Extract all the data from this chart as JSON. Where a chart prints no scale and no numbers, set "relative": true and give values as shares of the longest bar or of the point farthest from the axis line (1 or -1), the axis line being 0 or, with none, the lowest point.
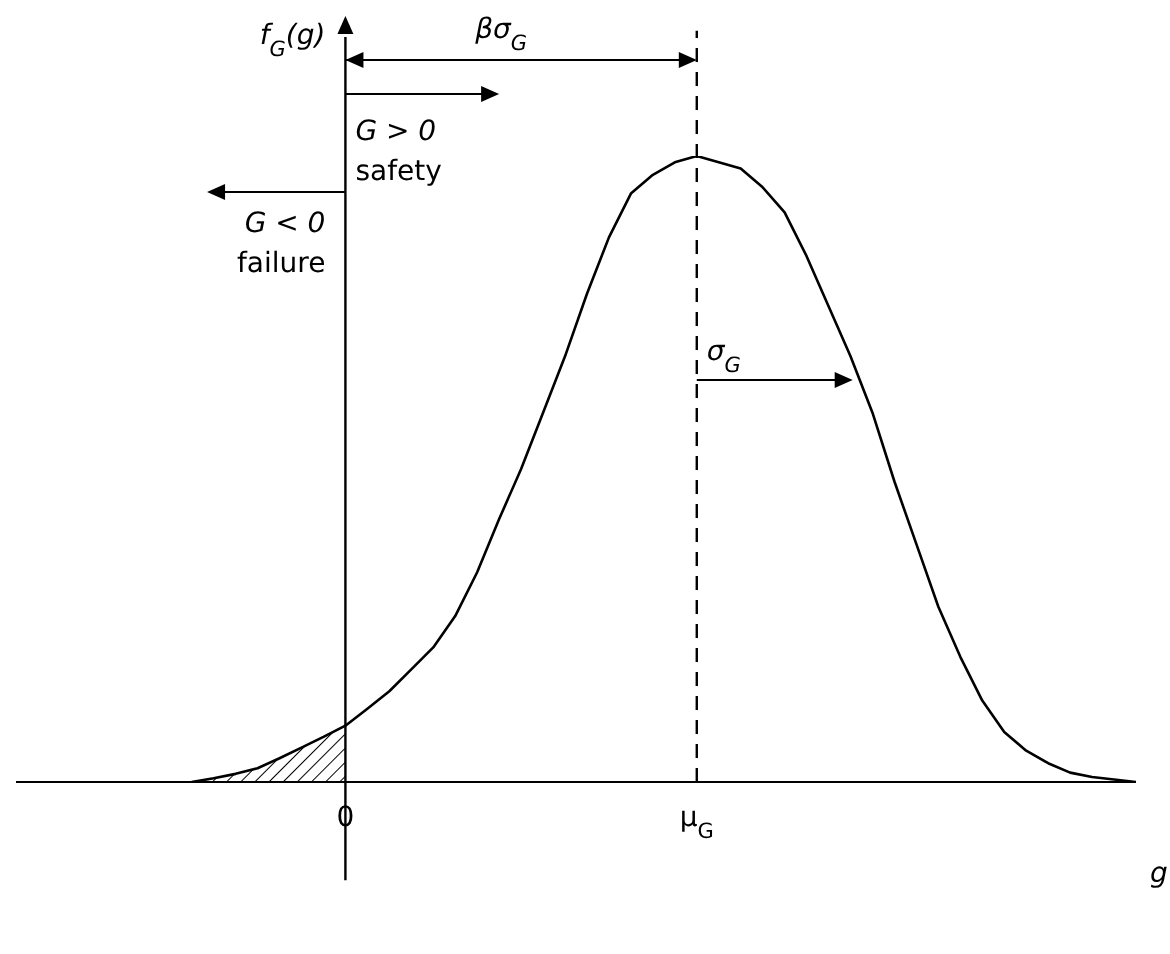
{
  "chart_data": {
    "type": "line",
    "relative": true,
    "xlabel": "g",
    "ylabel": "f$_{G}$(g)",
    "marker": "none",
    "categories": [
      null,
      null,
      null,
      null,
      null,
      null,
      null,
      null,
      null,
      null,
      null,
      null,
      null,
      null,
      null,
      "0",
      null,
      null,
      null,
      null,
      null,
      null,
      null,
      null,
      null,
      null,
      null,
      null,
      null,
      null,
      null,
      "μ$_{G}$",
      null,
      null,
      null,
      null,
      null,
      null,
      null,
      null,
      null,
      null,
      null,
      null,
      null,
      null,
      null,
      null,
      null,
      null,
      null,
      null
    ],
    "series": [
      {
        "color": "#000000",
        "values": [
          null,
          null,
          null,
          null,
          null,
          null,
          null,
          null,
          0,
          0.006,
          0.013,
          0.022,
          0.038,
          0.055,
          0.072,
          0.09,
          0.117,
          0.145,
          0.18,
          0.215,
          0.265,
          0.335,
          0.42,
          0.5,
          0.59,
          0.68,
          0.78,
          0.87,
          0.94,
          0.97,
          0.99,
          1,
          0.99,
          0.98,
          0.95,
          0.91,
          0.84,
          0.76,
          0.68,
          0.59,
          0.48,
          0.38,
          0.28,
          0.2,
          0.13,
          0.08,
          0.05,
          0.03,
          0.015,
          0.008,
          0.004,
          0
        ]
      },
      {
        "type": "area",
        "color": "#000000",
        "values": [
          null,
          null,
          null,
          null,
          null,
          null,
          null,
          null,
          0,
          0.006,
          0.013,
          0.022,
          0.038,
          0.055,
          0.072,
          0.09,
          null,
          null,
          null,
          null,
          null,
          null,
          null,
          null,
          null,
          null,
          null,
          null,
          null,
          null,
          null,
          null,
          null,
          null,
          null,
          null,
          null,
          null,
          null,
          null,
          null,
          null,
          null,
          null,
          null,
          null,
          null,
          null,
          null,
          null,
          null,
          null
        ]
      }
    ],
    "ref_lines": [
      {
        "axis": "x",
        "value": "0",
        "line_style": "solid"
      },
      {
        "axis": "x",
        "value": "μ$_{G}$",
        "line_style": "dashed"
      }
    ],
    "annotations": [
      "βσ$_{G}$",
      "G > 0\nsafety",
      "G < 0\nfailure",
      "σ$_{G}$"
    ]
  }
}
